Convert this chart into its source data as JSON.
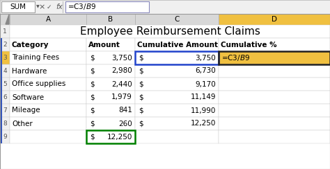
{
  "title": "Employee Reimbursement Claims",
  "formula_bar_text": "=C3/$B$9",
  "formula_bar_name": "SUM",
  "col_headers": [
    "A",
    "B",
    "C",
    "D"
  ],
  "headers": [
    "Category",
    "Amount",
    "Cumulative Amount",
    "Cumulative %"
  ],
  "categories": [
    "Training Fees",
    "Hardware",
    "Office supplies",
    "Software",
    "Mileage",
    "Other"
  ],
  "amounts_dollar": [
    "$",
    "$",
    "$",
    "$",
    "$",
    "$"
  ],
  "amounts_num": [
    "3,750",
    "2,980",
    "2,440",
    "1,979",
    "841",
    "260"
  ],
  "cum_dollar": [
    "$",
    "$",
    "$",
    "$",
    "$",
    "$"
  ],
  "cum_num": [
    "3,750",
    "6,730",
    "9,170",
    "11,149",
    "11,990",
    "12,250"
  ],
  "cum_pct_text": "=C3/$B$9",
  "total_text": "$ 12,250",
  "bg_color": "#FFFFFF",
  "col_header_bg": "#D8D8D8",
  "col_d_header_bg": "#F0C040",
  "cell_bg": "#FFFFFF",
  "row3_num_bg": "#F0C040",
  "formula_bar_bg": "#F0F0F0",
  "title_fontsize": 11,
  "header_fontsize": 7.5,
  "cell_fontsize": 7.5,
  "formula_fontsize": 7.5,
  "green_border": "#008000",
  "blue_border": "#2244CC",
  "dark_border": "#222222",
  "row_num_color": "#555555"
}
